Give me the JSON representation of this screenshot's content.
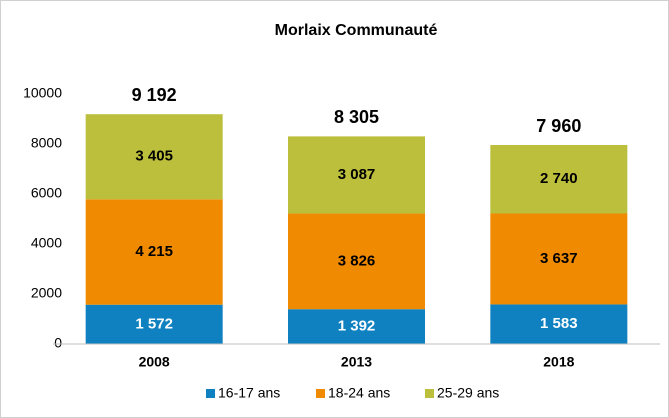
{
  "chart_data": {
    "type": "stacked_bar",
    "title": "Morlaix Communauté",
    "categories": [
      "2008",
      "2013",
      "2018"
    ],
    "series": [
      {
        "name": "16-17 ans",
        "color": "#0f80c0",
        "values": [
          1572,
          1392,
          1583
        ],
        "value_labels": [
          "1 572",
          "1 392",
          "1 583"
        ]
      },
      {
        "name": "18-24 ans",
        "color": "#f08a00",
        "values": [
          4215,
          3826,
          3637
        ],
        "value_labels": [
          "4 215",
          "3 826",
          "3 637"
        ]
      },
      {
        "name": "25-29 ans",
        "color": "#bcbf3c",
        "values": [
          3405,
          3087,
          2740
        ],
        "value_labels": [
          "3 405",
          "3 087",
          "2 740"
        ]
      }
    ],
    "totals": [
      9192,
      8305,
      7960
    ],
    "total_labels": [
      "9 192",
      "8 305",
      "7 960"
    ],
    "ylim": [
      0,
      10000
    ],
    "yticks": [
      0,
      2000,
      4000,
      6000,
      8000,
      10000
    ],
    "grid": false
  }
}
